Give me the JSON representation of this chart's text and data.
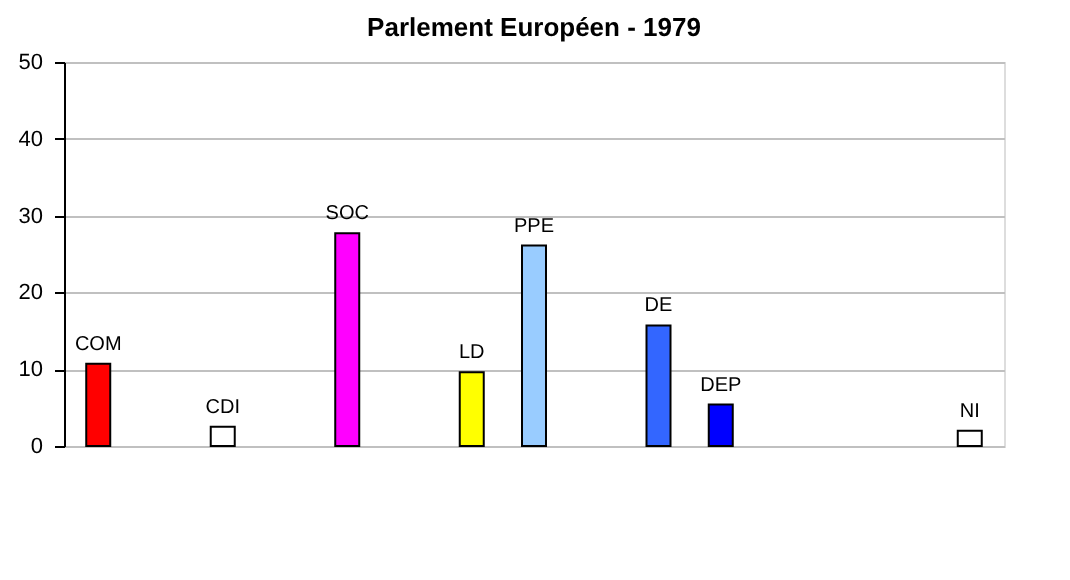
{
  "chart_data": {
    "type": "bar",
    "title": "Parlement Européen - 1979",
    "categories": [
      "COM",
      null,
      "CDI",
      null,
      "SOC",
      null,
      "LD",
      "PPE",
      null,
      "DE",
      "DEP",
      null,
      null,
      null,
      "NI"
    ],
    "values": [
      10.7,
      null,
      2.5,
      null,
      27.7,
      null,
      9.6,
      26.1,
      null,
      15.7,
      5.4,
      null,
      null,
      null,
      2.0
    ],
    "colors": [
      "#ff0000",
      null,
      "#ffffff",
      null,
      "#ff00ff",
      null,
      "#ffff00",
      "#99ccff",
      null,
      "#3366ff",
      "#0000ff",
      null,
      null,
      null,
      "#ffffff"
    ],
    "ylim": [
      0,
      50
    ],
    "yticks": [
      0,
      10,
      20,
      30,
      40,
      50
    ],
    "grid": "y",
    "tick_labels": "y"
  }
}
